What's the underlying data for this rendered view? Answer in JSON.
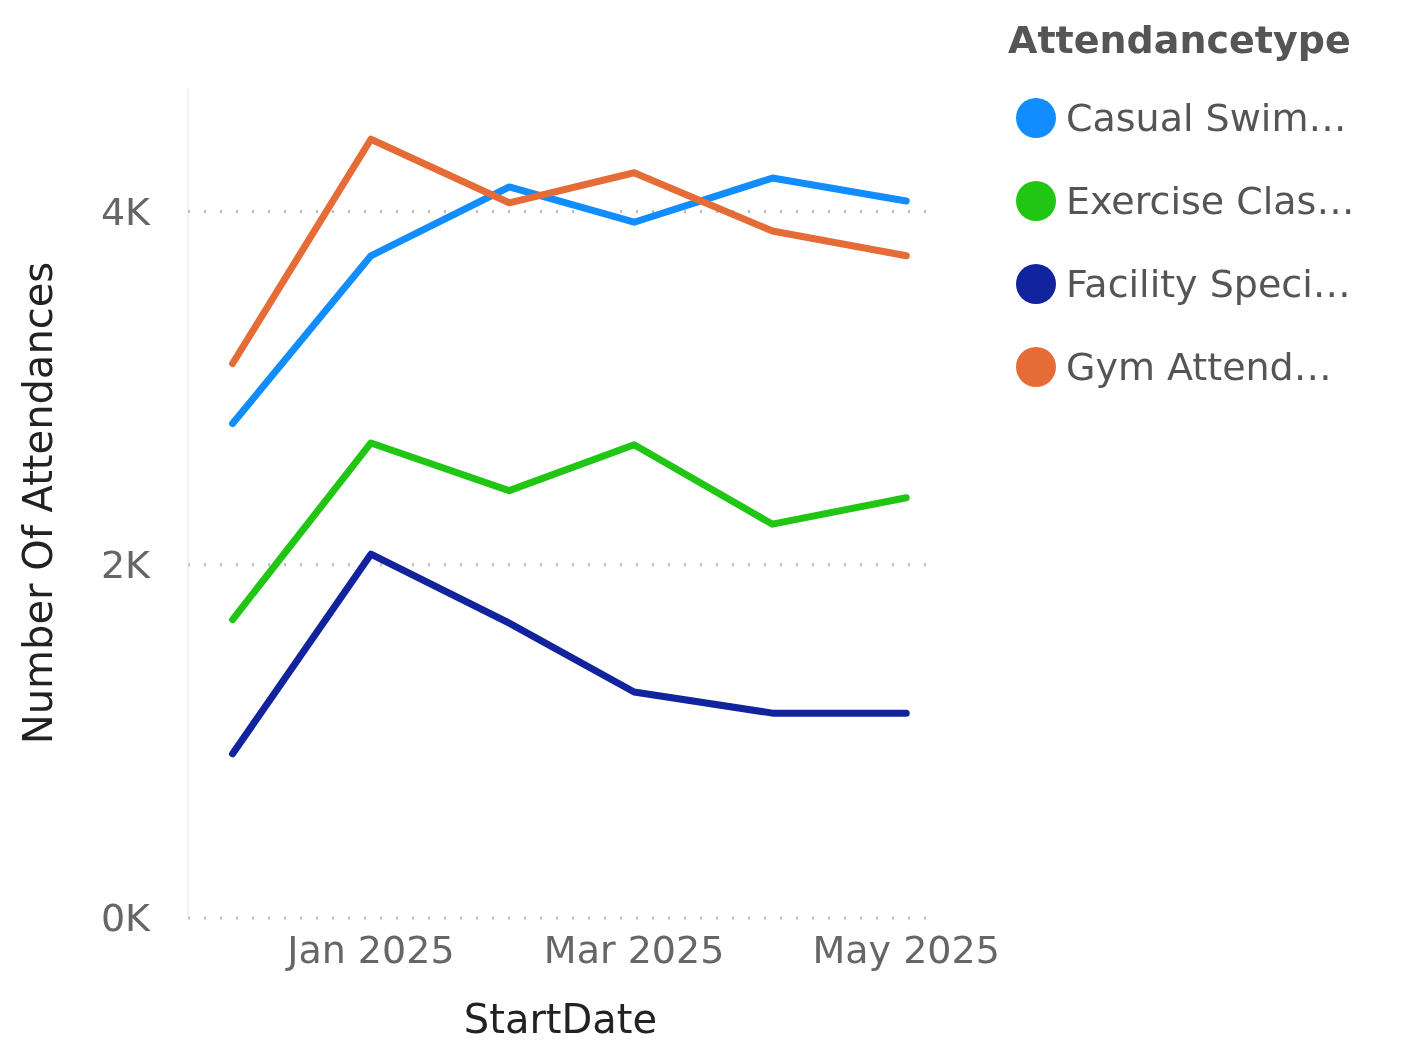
{
  "chart_data": {
    "type": "line",
    "xlabel": "StartDate",
    "ylabel": "Number Of Attendances",
    "legend_title": "Attendancetype",
    "x": [
      "2024-12-01",
      "2025-01-01",
      "2025-02-01",
      "2025-03-01",
      "2025-04-01",
      "2025-05-01"
    ],
    "series": [
      {
        "name": "Casual Swim…",
        "color": "#118dff",
        "values": [
          2800,
          3750,
          4140,
          3940,
          4190,
          4060
        ]
      },
      {
        "name": "Exercise Clas…",
        "color": "#21c614",
        "values": [
          1690,
          2690,
          2420,
          2680,
          2230,
          2380
        ]
      },
      {
        "name": "Facility Speci…",
        "color": "#12239e",
        "values": [
          930,
          2060,
          1670,
          1280,
          1160,
          1160
        ]
      },
      {
        "name": "Gym Attend…",
        "color": "#e66c37",
        "values": [
          3140,
          4410,
          4050,
          4220,
          3890,
          3750
        ]
      }
    ],
    "xlim": [
      "2024-11-21",
      "2025-05-07"
    ],
    "xticks": [
      {
        "value": "2025-01-01",
        "label": "Jan 2025"
      },
      {
        "value": "2025-03-01",
        "label": "Mar 2025"
      },
      {
        "value": "2025-05-01",
        "label": "May 2025"
      }
    ],
    "ylim": [
      0,
      4700
    ],
    "yticks": [
      {
        "value": 0,
        "label": "0K"
      },
      {
        "value": 2000,
        "label": "2K"
      },
      {
        "value": 4000,
        "label": "4K"
      }
    ],
    "grid": "y",
    "legend": "top right",
    "marker": "none",
    "line_style": "solid"
  }
}
